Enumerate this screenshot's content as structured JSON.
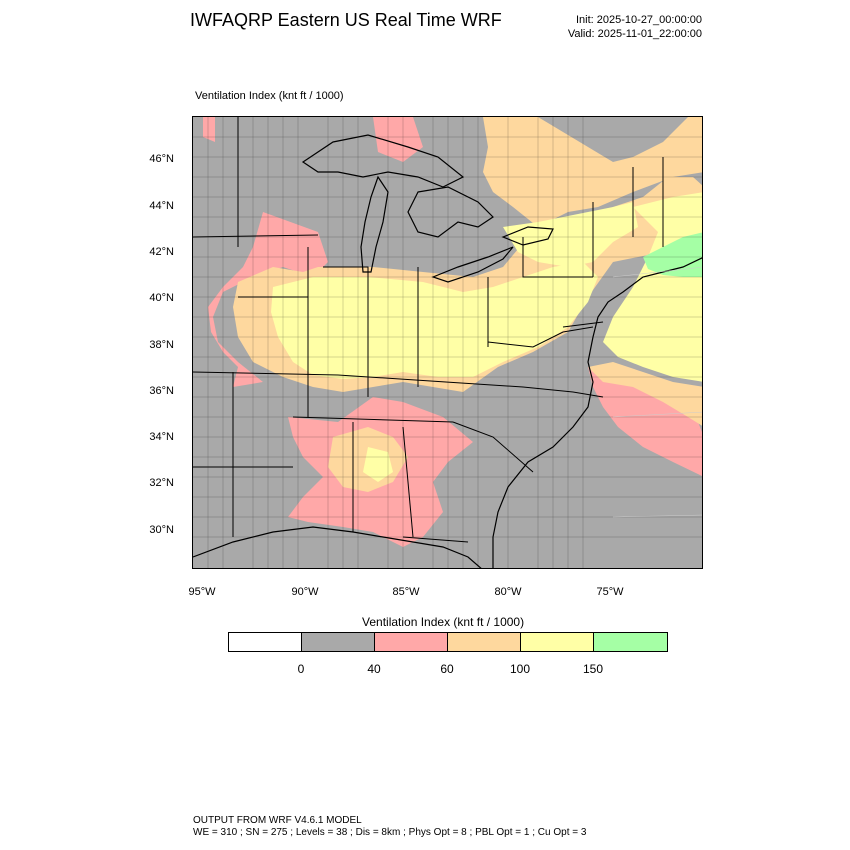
{
  "header": {
    "title": "IWFAQRP Eastern US Real Time WRF",
    "init": "Init: 2025-10-27_00:00:00",
    "valid": "Valid: 2025-11-01_22:00:00"
  },
  "map": {
    "subtitle": "Ventilation Index   (knt ft / 1000)",
    "lat_labels": [
      "46°N",
      "44°N",
      "42°N",
      "40°N",
      "38°N",
      "36°N",
      "34°N",
      "32°N",
      "30°N"
    ],
    "lon_labels": [
      "95°W",
      "90°W",
      "85°W",
      "80°W",
      "75°W"
    ],
    "colors": {
      "below_0": "#ffffff",
      "c0_40": "#a9a9a9",
      "c40_60": "#ffa8a8",
      "c60_100": "#fed89e",
      "c100_150": "#ffffa6",
      "c150_plus": "#a5ffa5",
      "water_boundary": "#000000"
    }
  },
  "legend": {
    "title": "Ventilation Index  (knt ft / 1000)",
    "colors": [
      "#ffffff",
      "#a9a9a9",
      "#ffa8a8",
      "#fed89e",
      "#ffffa6",
      "#a5ffa5"
    ],
    "ticks": [
      "0",
      "40",
      "60",
      "100",
      "150"
    ]
  },
  "footer": {
    "line1": "OUTPUT FROM WRF V4.6.1 MODEL",
    "line2": "WE = 310 ; SN = 275 ; Levels = 38 ; Dis = 8km ; Phys Opt = 8 ; PBL Opt = 1 ; Cu Opt = 3"
  }
}
